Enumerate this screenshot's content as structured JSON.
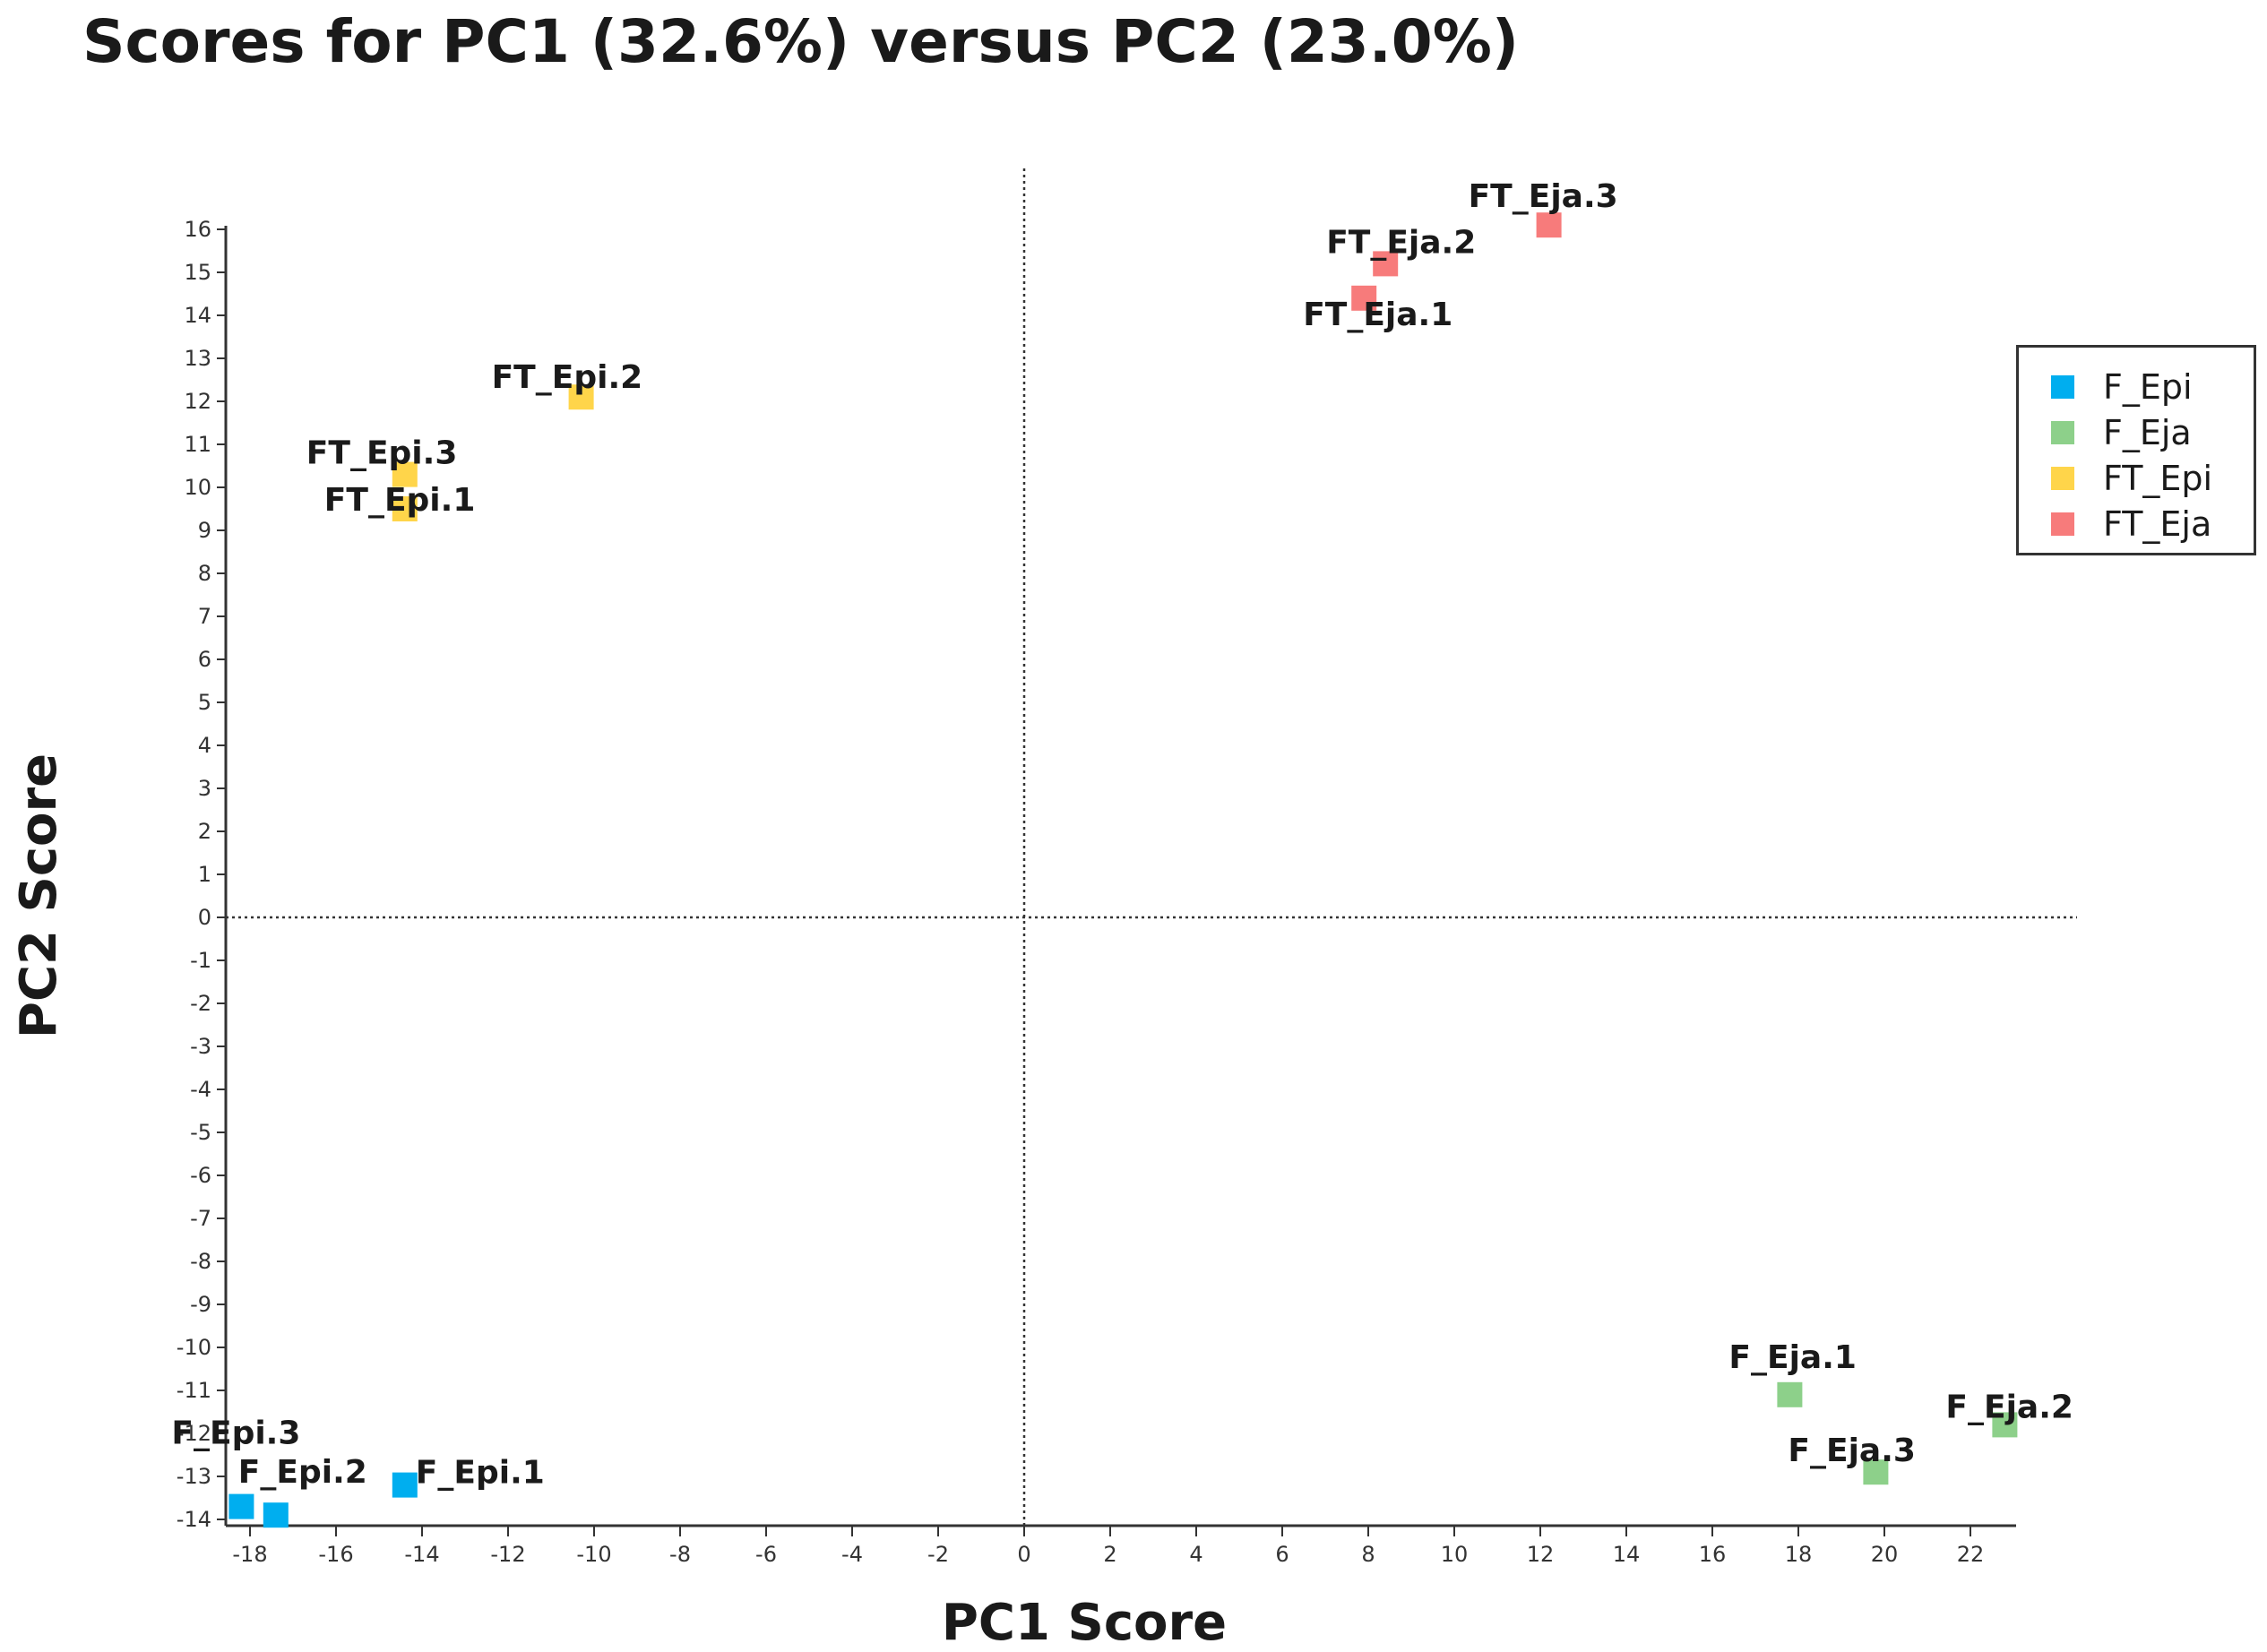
{
  "chart_data": {
    "type": "scatter",
    "title": "Scores for PC1 (32.6%) versus PC2 (23.0%)",
    "xlabel": "PC1 Score",
    "ylabel": "PC2 Score",
    "xlim": [
      -18.5,
      23
    ],
    "ylim": [
      -14,
      16
    ],
    "x_ticks": [
      -18,
      -16,
      -14,
      -12,
      -10,
      -8,
      -6,
      -4,
      -2,
      0,
      2,
      4,
      6,
      8,
      10,
      12,
      14,
      16,
      18,
      20,
      22
    ],
    "y_ticks": [
      16,
      15,
      14,
      13,
      12,
      11,
      10,
      9,
      8,
      7,
      6,
      5,
      4,
      3,
      2,
      1,
      0,
      -1,
      -2,
      -3,
      -4,
      -5,
      -6,
      -7,
      -8,
      -9,
      -10,
      -11,
      -12,
      -13,
      -14
    ],
    "reference_lines": {
      "x": 0,
      "y": 0,
      "style": "dotted"
    },
    "legend_position": "right",
    "series": [
      {
        "name": "F_Epi",
        "color": "#00AEEF",
        "points": [
          {
            "label": "F_Epi.1",
            "x": -14.4,
            "y": -13.2
          },
          {
            "label": "F_Epi.2",
            "x": -17.4,
            "y": -13.9
          },
          {
            "label": "F_Epi.3",
            "x": -18.2,
            "y": -13.7
          }
        ]
      },
      {
        "name": "F_Eja",
        "color": "#8DD08A",
        "points": [
          {
            "label": "F_Eja.1",
            "x": 17.8,
            "y": -11.1
          },
          {
            "label": "F_Eja.2",
            "x": 22.8,
            "y": -11.8
          },
          {
            "label": "F_Eja.3",
            "x": 19.8,
            "y": -12.9
          }
        ]
      },
      {
        "name": "FT_Epi",
        "color": "#FFD54A",
        "points": [
          {
            "label": "FT_Epi.1",
            "x": -14.4,
            "y": 9.5
          },
          {
            "label": "FT_Epi.2",
            "x": -10.3,
            "y": 12.1
          },
          {
            "label": "FT_Epi.3",
            "x": -14.4,
            "y": 10.3
          }
        ]
      },
      {
        "name": "FT_Eja",
        "color": "#F77B7B",
        "points": [
          {
            "label": "FT_Eja.1",
            "x": 7.9,
            "y": 14.4
          },
          {
            "label": "FT_Eja.2",
            "x": 8.4,
            "y": 15.2
          },
          {
            "label": "FT_Eja.3",
            "x": 12.2,
            "y": 16.1
          }
        ]
      }
    ]
  }
}
